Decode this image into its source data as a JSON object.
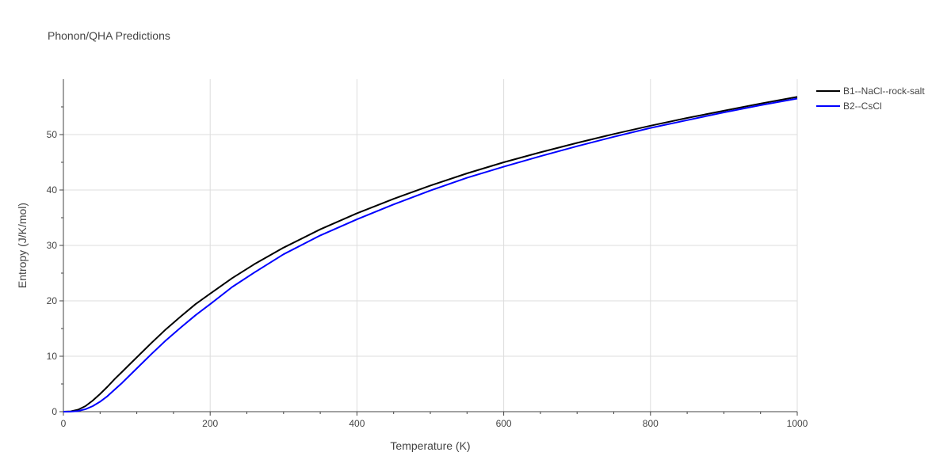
{
  "chart_data": {
    "type": "line",
    "title": "Phonon/QHA Predictions",
    "xlabel": "Temperature (K)",
    "ylabel": "Entropy (J/K/mol)",
    "xlim": [
      0,
      1000
    ],
    "ylim": [
      0,
      60
    ],
    "grid": true,
    "legend_position": "top-right",
    "x_ticks": [
      0,
      200,
      400,
      600,
      800,
      1000
    ],
    "y_ticks": [
      0,
      10,
      20,
      30,
      40,
      50
    ],
    "series": [
      {
        "name": "B1--NaCl--rock-salt",
        "color": "#000000",
        "x": [
          0,
          10,
          20,
          30,
          40,
          50,
          60,
          70,
          80,
          90,
          100,
          120,
          140,
          160,
          180,
          200,
          230,
          260,
          300,
          350,
          400,
          450,
          500,
          550,
          600,
          650,
          700,
          750,
          800,
          850,
          900,
          950,
          1000
        ],
        "y": [
          0,
          0.05,
          0.35,
          1.0,
          2.0,
          3.2,
          4.5,
          5.9,
          7.2,
          8.5,
          9.8,
          12.4,
          14.9,
          17.2,
          19.4,
          21.3,
          24.1,
          26.6,
          29.6,
          32.9,
          35.8,
          38.4,
          40.8,
          43.0,
          45.0,
          46.8,
          48.5,
          50.1,
          51.6,
          53.0,
          54.3,
          55.6,
          56.8
        ]
      },
      {
        "name": "B2--CsCl",
        "color": "#0000ff",
        "x": [
          0,
          10,
          20,
          30,
          40,
          50,
          60,
          70,
          80,
          90,
          100,
          120,
          140,
          160,
          180,
          200,
          230,
          260,
          300,
          350,
          400,
          450,
          500,
          550,
          600,
          650,
          700,
          750,
          800,
          850,
          900,
          950,
          1000
        ],
        "y": [
          0,
          0.02,
          0.12,
          0.45,
          1.0,
          1.8,
          2.8,
          4.0,
          5.2,
          6.5,
          7.8,
          10.4,
          12.9,
          15.2,
          17.4,
          19.4,
          22.5,
          25.1,
          28.4,
          31.8,
          34.7,
          37.4,
          39.9,
          42.2,
          44.2,
          46.1,
          47.9,
          49.6,
          51.2,
          52.6,
          54.0,
          55.3,
          56.5
        ]
      }
    ]
  }
}
